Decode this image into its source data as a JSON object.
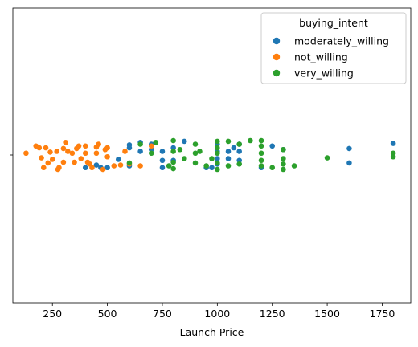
{
  "chart_data": {
    "type": "scatter",
    "subtype": "strip",
    "xlabel": "Launch Price",
    "ylabel": "",
    "xlim": [
      70,
      1880
    ],
    "xticks": [
      250,
      500,
      750,
      1000,
      1250,
      1500,
      1750
    ],
    "legend": {
      "title": "buying_intent",
      "placement": "top-right"
    },
    "colors": {
      "moderately_willing": "#1f77b4",
      "not_willing": "#ff7f0e",
      "very_willing": "#2ca02c"
    },
    "series": [
      {
        "name": "moderately_willing",
        "points": [
          [
            400,
            -0.35
          ],
          [
            450,
            -0.28
          ],
          [
            470,
            -0.35
          ],
          [
            500,
            -0.35
          ],
          [
            550,
            -0.12
          ],
          [
            600,
            -0.3
          ],
          [
            600,
            0.28
          ],
          [
            650,
            0.1
          ],
          [
            600,
            0.2
          ],
          [
            650,
            0.35
          ],
          [
            700,
            0.15
          ],
          [
            700,
            0.3
          ],
          [
            750,
            -0.35
          ],
          [
            750,
            -0.15
          ],
          [
            750,
            0.1
          ],
          [
            800,
            -0.15
          ],
          [
            800,
            0.2
          ],
          [
            850,
            0.38
          ],
          [
            950,
            -0.35
          ],
          [
            975,
            -0.35
          ],
          [
            1000,
            -0.25
          ],
          [
            1000,
            -0.1
          ],
          [
            1000,
            0.1
          ],
          [
            1000,
            0.3
          ],
          [
            1050,
            0.1
          ],
          [
            1050,
            -0.1
          ],
          [
            1075,
            0.2
          ],
          [
            1100,
            -0.15
          ],
          [
            1100,
            0.1
          ],
          [
            1100,
            0.3
          ],
          [
            1200,
            -0.35
          ],
          [
            1250,
            0.25
          ],
          [
            1300,
            0.15
          ],
          [
            1600,
            -0.22
          ],
          [
            1600,
            0.18
          ],
          [
            1800,
            0.32
          ]
        ]
      },
      {
        "name": "not_willing",
        "points": [
          [
            130,
            0.05
          ],
          [
            175,
            0.25
          ],
          [
            190,
            0.2
          ],
          [
            200,
            -0.08
          ],
          [
            210,
            -0.35
          ],
          [
            220,
            0.2
          ],
          [
            230,
            -0.22
          ],
          [
            240,
            0.08
          ],
          [
            250,
            -0.12
          ],
          [
            270,
            0.1
          ],
          [
            275,
            -0.4
          ],
          [
            280,
            -0.35
          ],
          [
            300,
            -0.2
          ],
          [
            300,
            0.18
          ],
          [
            310,
            0.35
          ],
          [
            320,
            0.1
          ],
          [
            340,
            0.05
          ],
          [
            350,
            -0.2
          ],
          [
            360,
            0.18
          ],
          [
            370,
            0.25
          ],
          [
            380,
            -0.1
          ],
          [
            400,
            0.05
          ],
          [
            400,
            0.25
          ],
          [
            410,
            -0.2
          ],
          [
            420,
            -0.25
          ],
          [
            430,
            -0.35
          ],
          [
            450,
            0.05
          ],
          [
            450,
            0.22
          ],
          [
            460,
            0.3
          ],
          [
            480,
            -0.4
          ],
          [
            490,
            0.15
          ],
          [
            500,
            -0.05
          ],
          [
            500,
            0.2
          ],
          [
            530,
            -0.3
          ],
          [
            560,
            -0.28
          ],
          [
            580,
            0.1
          ],
          [
            600,
            -0.25
          ],
          [
            650,
            -0.3
          ],
          [
            700,
            0.25
          ]
        ]
      },
      {
        "name": "very_willing",
        "points": [
          [
            600,
            -0.22
          ],
          [
            650,
            0.3
          ],
          [
            700,
            0.05
          ],
          [
            720,
            0.35
          ],
          [
            780,
            -0.3
          ],
          [
            800,
            -0.38
          ],
          [
            800,
            -0.2
          ],
          [
            800,
            0.1
          ],
          [
            800,
            0.4
          ],
          [
            830,
            0.15
          ],
          [
            850,
            -0.1
          ],
          [
            900,
            0.3
          ],
          [
            900,
            0.05
          ],
          [
            900,
            -0.22
          ],
          [
            920,
            0.1
          ],
          [
            950,
            -0.3
          ],
          [
            975,
            -0.1
          ],
          [
            1000,
            -0.4
          ],
          [
            1000,
            0.38
          ],
          [
            1000,
            0.2
          ],
          [
            1000,
            -0.22
          ],
          [
            1000,
            0.05
          ],
          [
            1050,
            -0.3
          ],
          [
            1050,
            0.38
          ],
          [
            1100,
            -0.25
          ],
          [
            1100,
            0.3
          ],
          [
            1150,
            0.4
          ],
          [
            1200,
            -0.3
          ],
          [
            1200,
            -0.15
          ],
          [
            1200,
            0.25
          ],
          [
            1200,
            0.05
          ],
          [
            1200,
            0.4
          ],
          [
            1250,
            -0.35
          ],
          [
            1300,
            -0.1
          ],
          [
            1300,
            -0.4
          ],
          [
            1300,
            -0.25
          ],
          [
            1300,
            0.15
          ],
          [
            1350,
            -0.3
          ],
          [
            1500,
            -0.08
          ],
          [
            1800,
            -0.05
          ],
          [
            1800,
            0.05
          ]
        ]
      }
    ]
  }
}
